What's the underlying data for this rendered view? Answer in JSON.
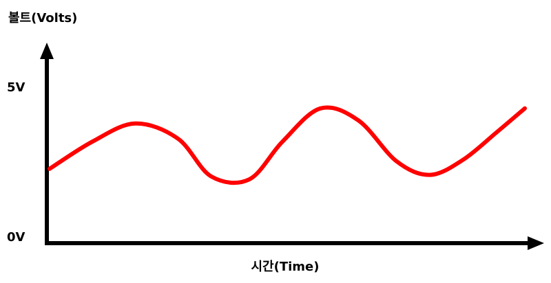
{
  "chart_data": {
    "type": "line",
    "ylabel": "볼트(Volts)",
    "xlabel": "시간(Time)",
    "y_ticks": [
      "5V",
      "0V"
    ],
    "y_tick_values": [
      5,
      0
    ],
    "ylim": [
      0,
      5
    ],
    "xlim": [
      0,
      1
    ],
    "grid": false,
    "legend": "none",
    "colors": {
      "axis": "#000000",
      "series": "#ff0000"
    },
    "series": [
      {
        "x": [
          0.0,
          0.09,
          0.18,
          0.27,
          0.34,
          0.42,
          0.49,
          0.57,
          0.65,
          0.73,
          0.8,
          0.87,
          0.94,
          1.0
        ],
        "y": [
          2.3,
          3.2,
          3.8,
          3.3,
          2.05,
          1.95,
          3.2,
          4.3,
          3.9,
          2.55,
          2.1,
          2.6,
          3.5,
          4.3
        ]
      }
    ]
  }
}
